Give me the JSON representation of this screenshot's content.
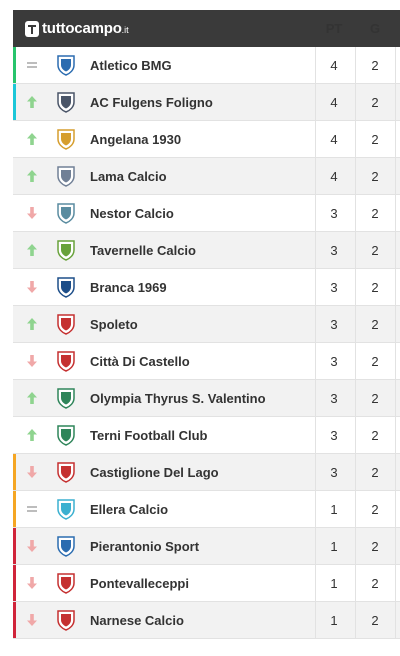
{
  "header": {
    "logo_text": "tuttocampo",
    "logo_tld": ".it",
    "col_pt": "PT",
    "col_g": "G"
  },
  "colors": {
    "header_bg": "#3a3a3a",
    "trend_up": "#8fd48f",
    "trend_down": "#f0a8a8",
    "trend_same": "#bdbdbd",
    "accent_green": "#28c46c",
    "accent_cyan": "#1cc7d8",
    "accent_orange": "#f5a623",
    "accent_red": "#d0243a"
  },
  "rows": [
    {
      "team": "Atletico BMG",
      "pt": "4",
      "g": "2",
      "trend": "same",
      "accent": "green",
      "crest": "crest-icon"
    },
    {
      "team": "AC Fulgens Foligno",
      "pt": "4",
      "g": "2",
      "trend": "up",
      "accent": "cyan",
      "crest": "crest-icon"
    },
    {
      "team": "Angelana 1930",
      "pt": "4",
      "g": "2",
      "trend": "up",
      "accent": "",
      "crest": "crest-icon"
    },
    {
      "team": "Lama Calcio",
      "pt": "4",
      "g": "2",
      "trend": "up",
      "accent": "",
      "crest": "crest-icon"
    },
    {
      "team": "Nestor Calcio",
      "pt": "3",
      "g": "2",
      "trend": "down",
      "accent": "",
      "crest": "crest-icon"
    },
    {
      "team": "Tavernelle Calcio",
      "pt": "3",
      "g": "2",
      "trend": "up",
      "accent": "",
      "crest": "crest-icon"
    },
    {
      "team": "Branca 1969",
      "pt": "3",
      "g": "2",
      "trend": "down",
      "accent": "",
      "crest": "crest-icon"
    },
    {
      "team": "Spoleto",
      "pt": "3",
      "g": "2",
      "trend": "up",
      "accent": "",
      "crest": "crest-icon"
    },
    {
      "team": "Città Di Castello",
      "pt": "3",
      "g": "2",
      "trend": "down",
      "accent": "",
      "crest": "crest-icon"
    },
    {
      "team": "Olympia Thyrus S. Valentino",
      "pt": "3",
      "g": "2",
      "trend": "up",
      "accent": "",
      "crest": "crest-icon"
    },
    {
      "team": "Terni Football Club",
      "pt": "3",
      "g": "2",
      "trend": "up",
      "accent": "",
      "crest": "crest-icon"
    },
    {
      "team": "Castiglione Del Lago",
      "pt": "3",
      "g": "2",
      "trend": "down",
      "accent": "orange",
      "crest": "crest-icon"
    },
    {
      "team": "Ellera Calcio",
      "pt": "1",
      "g": "2",
      "trend": "same",
      "accent": "orange",
      "crest": "crest-icon"
    },
    {
      "team": "Pierantonio Sport",
      "pt": "1",
      "g": "2",
      "trend": "down",
      "accent": "red",
      "crest": "crest-icon"
    },
    {
      "team": "Pontevalleceppi",
      "pt": "1",
      "g": "2",
      "trend": "down",
      "accent": "red",
      "crest": "crest-icon"
    },
    {
      "team": "Narnese Calcio",
      "pt": "1",
      "g": "2",
      "trend": "down",
      "accent": "red",
      "crest": "crest-icon"
    }
  ]
}
